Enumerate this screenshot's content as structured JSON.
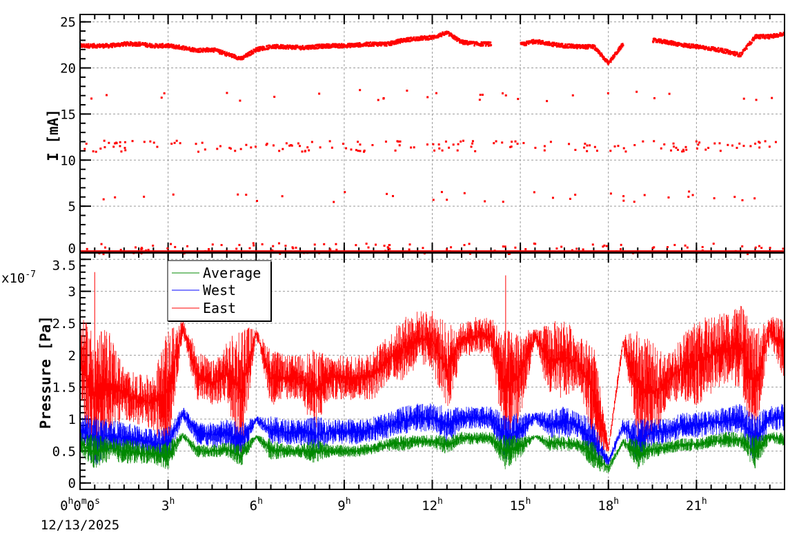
{
  "chart_data": [
    {
      "type": "scatter",
      "title": "",
      "ylabel": "I [mA]",
      "xlabel": "",
      "xlim_hours": [
        0,
        24
      ],
      "ylim": [
        0,
        25.8
      ],
      "yticks": [
        "0",
        "5",
        "10",
        "15",
        "20",
        "25"
      ],
      "grid": true,
      "series": [
        {
          "name": "Current",
          "color": "#ff0000",
          "x_hours": [
            0,
            0.5,
            1,
            1.5,
            2,
            2.5,
            3,
            3.5,
            4,
            4.5,
            5,
            5.5,
            6,
            6.5,
            7,
            7.5,
            8,
            8.5,
            9,
            9.5,
            10,
            10.5,
            11,
            11.5,
            12,
            12.5,
            13,
            13.5,
            14,
            14.5,
            15,
            15.5,
            16,
            16.5,
            17,
            17.5,
            18,
            18.5,
            19,
            19.5,
            20,
            20.5,
            21,
            21.5,
            22,
            22.5,
            23,
            23.5,
            24
          ],
          "values": [
            22.4,
            22.4,
            22.4,
            22.6,
            22.6,
            22.4,
            22.4,
            22.2,
            21.9,
            22.0,
            21.5,
            21.0,
            22.0,
            22.3,
            22.3,
            22.2,
            22.3,
            22.4,
            22.4,
            22.5,
            22.6,
            22.6,
            23.0,
            23.2,
            23.3,
            23.8,
            22.8,
            22.6,
            22.6,
            null,
            22.5,
            22.9,
            22.6,
            22.4,
            22.3,
            22.3,
            20.5,
            22.6,
            null,
            23.0,
            22.8,
            22.5,
            22.3,
            22.1,
            21.8,
            21.4,
            23.4,
            23.4,
            23.7
          ],
          "outlier_levels": [
            0.4,
            6.0,
            11.5,
            17.0
          ]
        }
      ]
    },
    {
      "type": "line",
      "title": "",
      "ylabel": "Pressure [Pa]",
      "y_multiplier": "x10",
      "y_exponent": "-7",
      "xlim_hours": [
        0,
        24
      ],
      "ylim": [
        -0.1,
        3.6
      ],
      "yticks": [
        "0",
        "0.5",
        "1",
        "1.5",
        "2",
        "2.5",
        "3",
        "3.5"
      ],
      "grid": true,
      "legend_placement": "top-left",
      "x_hours": [
        0,
        0.5,
        1,
        1.5,
        2,
        2.5,
        3,
        3.5,
        4,
        4.5,
        5,
        5.5,
        6,
        6.5,
        7,
        7.5,
        8,
        8.5,
        9,
        9.5,
        10,
        10.5,
        11,
        11.5,
        12,
        12.5,
        13,
        13.5,
        14,
        14.5,
        15,
        15.5,
        16,
        16.5,
        17,
        17.5,
        18,
        18.5,
        19,
        19.5,
        20,
        20.5,
        21,
        21.5,
        22,
        22.5,
        23,
        23.5,
        24
      ],
      "series": [
        {
          "name": "Average",
          "color": "#008800",
          "min": [
            0.45,
            0.2,
            0.35,
            0.3,
            0.3,
            0.3,
            0.2,
            0.7,
            0.4,
            0.4,
            0.4,
            0.25,
            0.7,
            0.35,
            0.4,
            0.4,
            0.3,
            0.4,
            0.4,
            0.4,
            0.45,
            0.5,
            0.5,
            0.55,
            0.55,
            0.45,
            0.6,
            0.6,
            0.6,
            0.2,
            0.4,
            0.7,
            0.5,
            0.5,
            0.5,
            0.2,
            0.15,
            0.6,
            0.2,
            0.4,
            0.45,
            0.5,
            0.5,
            0.55,
            0.55,
            0.55,
            0.2,
            0.65,
            0.55
          ],
          "max": [
            0.8,
            0.75,
            0.75,
            0.7,
            0.65,
            0.6,
            0.65,
            0.8,
            0.6,
            0.6,
            0.65,
            0.6,
            0.75,
            0.7,
            0.6,
            0.6,
            0.7,
            0.6,
            0.6,
            0.6,
            0.65,
            0.7,
            0.75,
            0.75,
            0.75,
            0.75,
            0.8,
            0.8,
            0.8,
            0.75,
            0.75,
            0.75,
            0.75,
            0.75,
            0.7,
            0.65,
            0.3,
            0.7,
            0.7,
            0.65,
            0.65,
            0.7,
            0.7,
            0.75,
            0.8,
            0.8,
            0.75,
            0.8,
            0.8
          ]
        },
        {
          "name": "West",
          "color": "#0000ff",
          "min": [
            0.6,
            0.25,
            0.5,
            0.45,
            0.45,
            0.4,
            0.3,
            1.0,
            0.6,
            0.55,
            0.55,
            0.35,
            0.95,
            0.6,
            0.6,
            0.6,
            0.45,
            0.6,
            0.6,
            0.6,
            0.65,
            0.7,
            0.75,
            0.8,
            0.8,
            0.6,
            0.85,
            0.85,
            0.85,
            0.3,
            0.6,
            0.95,
            0.7,
            0.7,
            0.7,
            0.3,
            0.25,
            0.8,
            0.3,
            0.6,
            0.6,
            0.7,
            0.7,
            0.75,
            0.75,
            0.75,
            0.3,
            0.85,
            0.8
          ],
          "max": [
            1.1,
            1.05,
            1.0,
            0.95,
            0.9,
            0.85,
            0.9,
            1.2,
            0.95,
            0.95,
            1.0,
            0.95,
            1.05,
            1.05,
            1.0,
            1.0,
            1.05,
            1.0,
            1.0,
            1.0,
            1.05,
            1.1,
            1.2,
            1.25,
            1.25,
            1.2,
            1.2,
            1.2,
            1.2,
            1.1,
            1.1,
            1.1,
            1.15,
            1.2,
            1.1,
            1.0,
            0.4,
            1.0,
            1.0,
            1.0,
            1.0,
            1.1,
            1.1,
            1.15,
            1.2,
            1.25,
            1.1,
            1.2,
            1.25
          ]
        },
        {
          "name": "East",
          "color": "#ff0000",
          "min": [
            1.3,
            0.3,
            0.7,
            1.0,
            0.9,
            0.8,
            0.5,
            2.3,
            1.3,
            1.2,
            1.2,
            0.4,
            2.3,
            1.2,
            1.3,
            1.3,
            0.8,
            1.3,
            1.3,
            1.3,
            1.3,
            1.6,
            1.6,
            1.8,
            1.8,
            1.0,
            2.0,
            2.0,
            2.0,
            0.5,
            1.0,
            2.2,
            1.3,
            1.3,
            1.5,
            0.6,
            0.45,
            2.1,
            0.6,
            0.6,
            1.2,
            1.3,
            1.2,
            1.4,
            1.5,
            1.5,
            0.6,
            2.2,
            1.6
          ],
          "max": [
            2.6,
            2.4,
            2.4,
            1.8,
            1.7,
            1.7,
            2.4,
            2.55,
            2.1,
            1.9,
            2.2,
            2.5,
            2.4,
            2.1,
            2.0,
            2.0,
            2.1,
            2.0,
            2.0,
            2.0,
            2.1,
            2.3,
            2.6,
            2.7,
            2.7,
            2.5,
            2.5,
            2.6,
            2.6,
            2.4,
            2.4,
            2.4,
            2.5,
            2.6,
            2.3,
            2.2,
            0.6,
            2.3,
            2.4,
            2.2,
            2.0,
            2.3,
            2.6,
            2.6,
            2.7,
            2.8,
            2.4,
            2.6,
            2.6
          ]
        }
      ]
    }
  ],
  "x_axis": {
    "ticks": [
      {
        "h": 0,
        "label": "0",
        "unit": "h",
        "extra": "0",
        "extra_unit": "m",
        "extra2": "0",
        "extra2_unit": "s"
      },
      {
        "h": 3,
        "label": "3",
        "unit": "h"
      },
      {
        "h": 6,
        "label": "6",
        "unit": "h"
      },
      {
        "h": 9,
        "label": "9",
        "unit": "h"
      },
      {
        "h": 12,
        "label": "12",
        "unit": "h"
      },
      {
        "h": 15,
        "label": "15",
        "unit": "h"
      },
      {
        "h": 18,
        "label": "18",
        "unit": "h"
      },
      {
        "h": 21,
        "label": "21",
        "unit": "h"
      }
    ],
    "date": "12/13/2025"
  }
}
